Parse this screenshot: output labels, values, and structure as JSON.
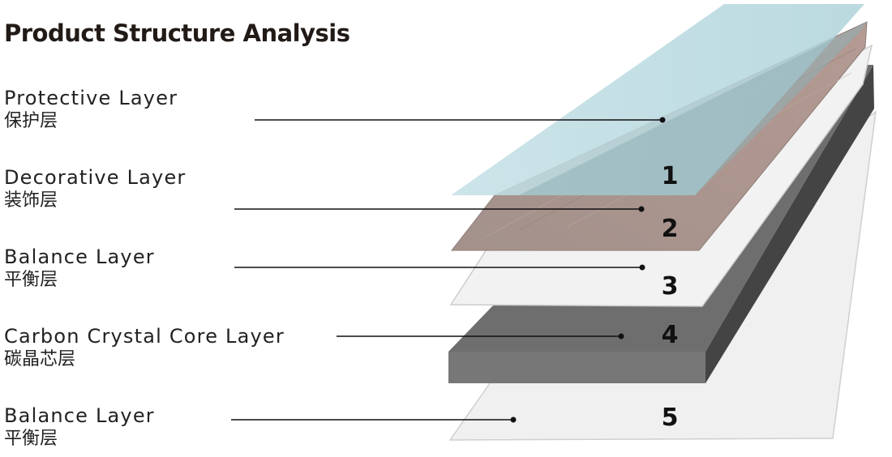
{
  "title": "Product Structure Analysis",
  "layers": [
    {
      "number": "1",
      "name_en": "Protective Layer",
      "name_zh": "保护层",
      "color": "#a9cfd6"
    },
    {
      "number": "2",
      "name_en": "Decorative Layer",
      "name_zh": "装饰层",
      "color": "#9b8b85"
    },
    {
      "number": "3",
      "name_en": "Balance Layer",
      "name_zh": "平衡层",
      "color": "#efefef"
    },
    {
      "number": "4",
      "name_en": "Carbon Crystal Core Layer",
      "name_zh": "碳晶芯层",
      "color": "#737373"
    },
    {
      "number": "5",
      "name_en": "Balance Layer",
      "name_zh": "平衡层",
      "color": "#efefef"
    }
  ]
}
